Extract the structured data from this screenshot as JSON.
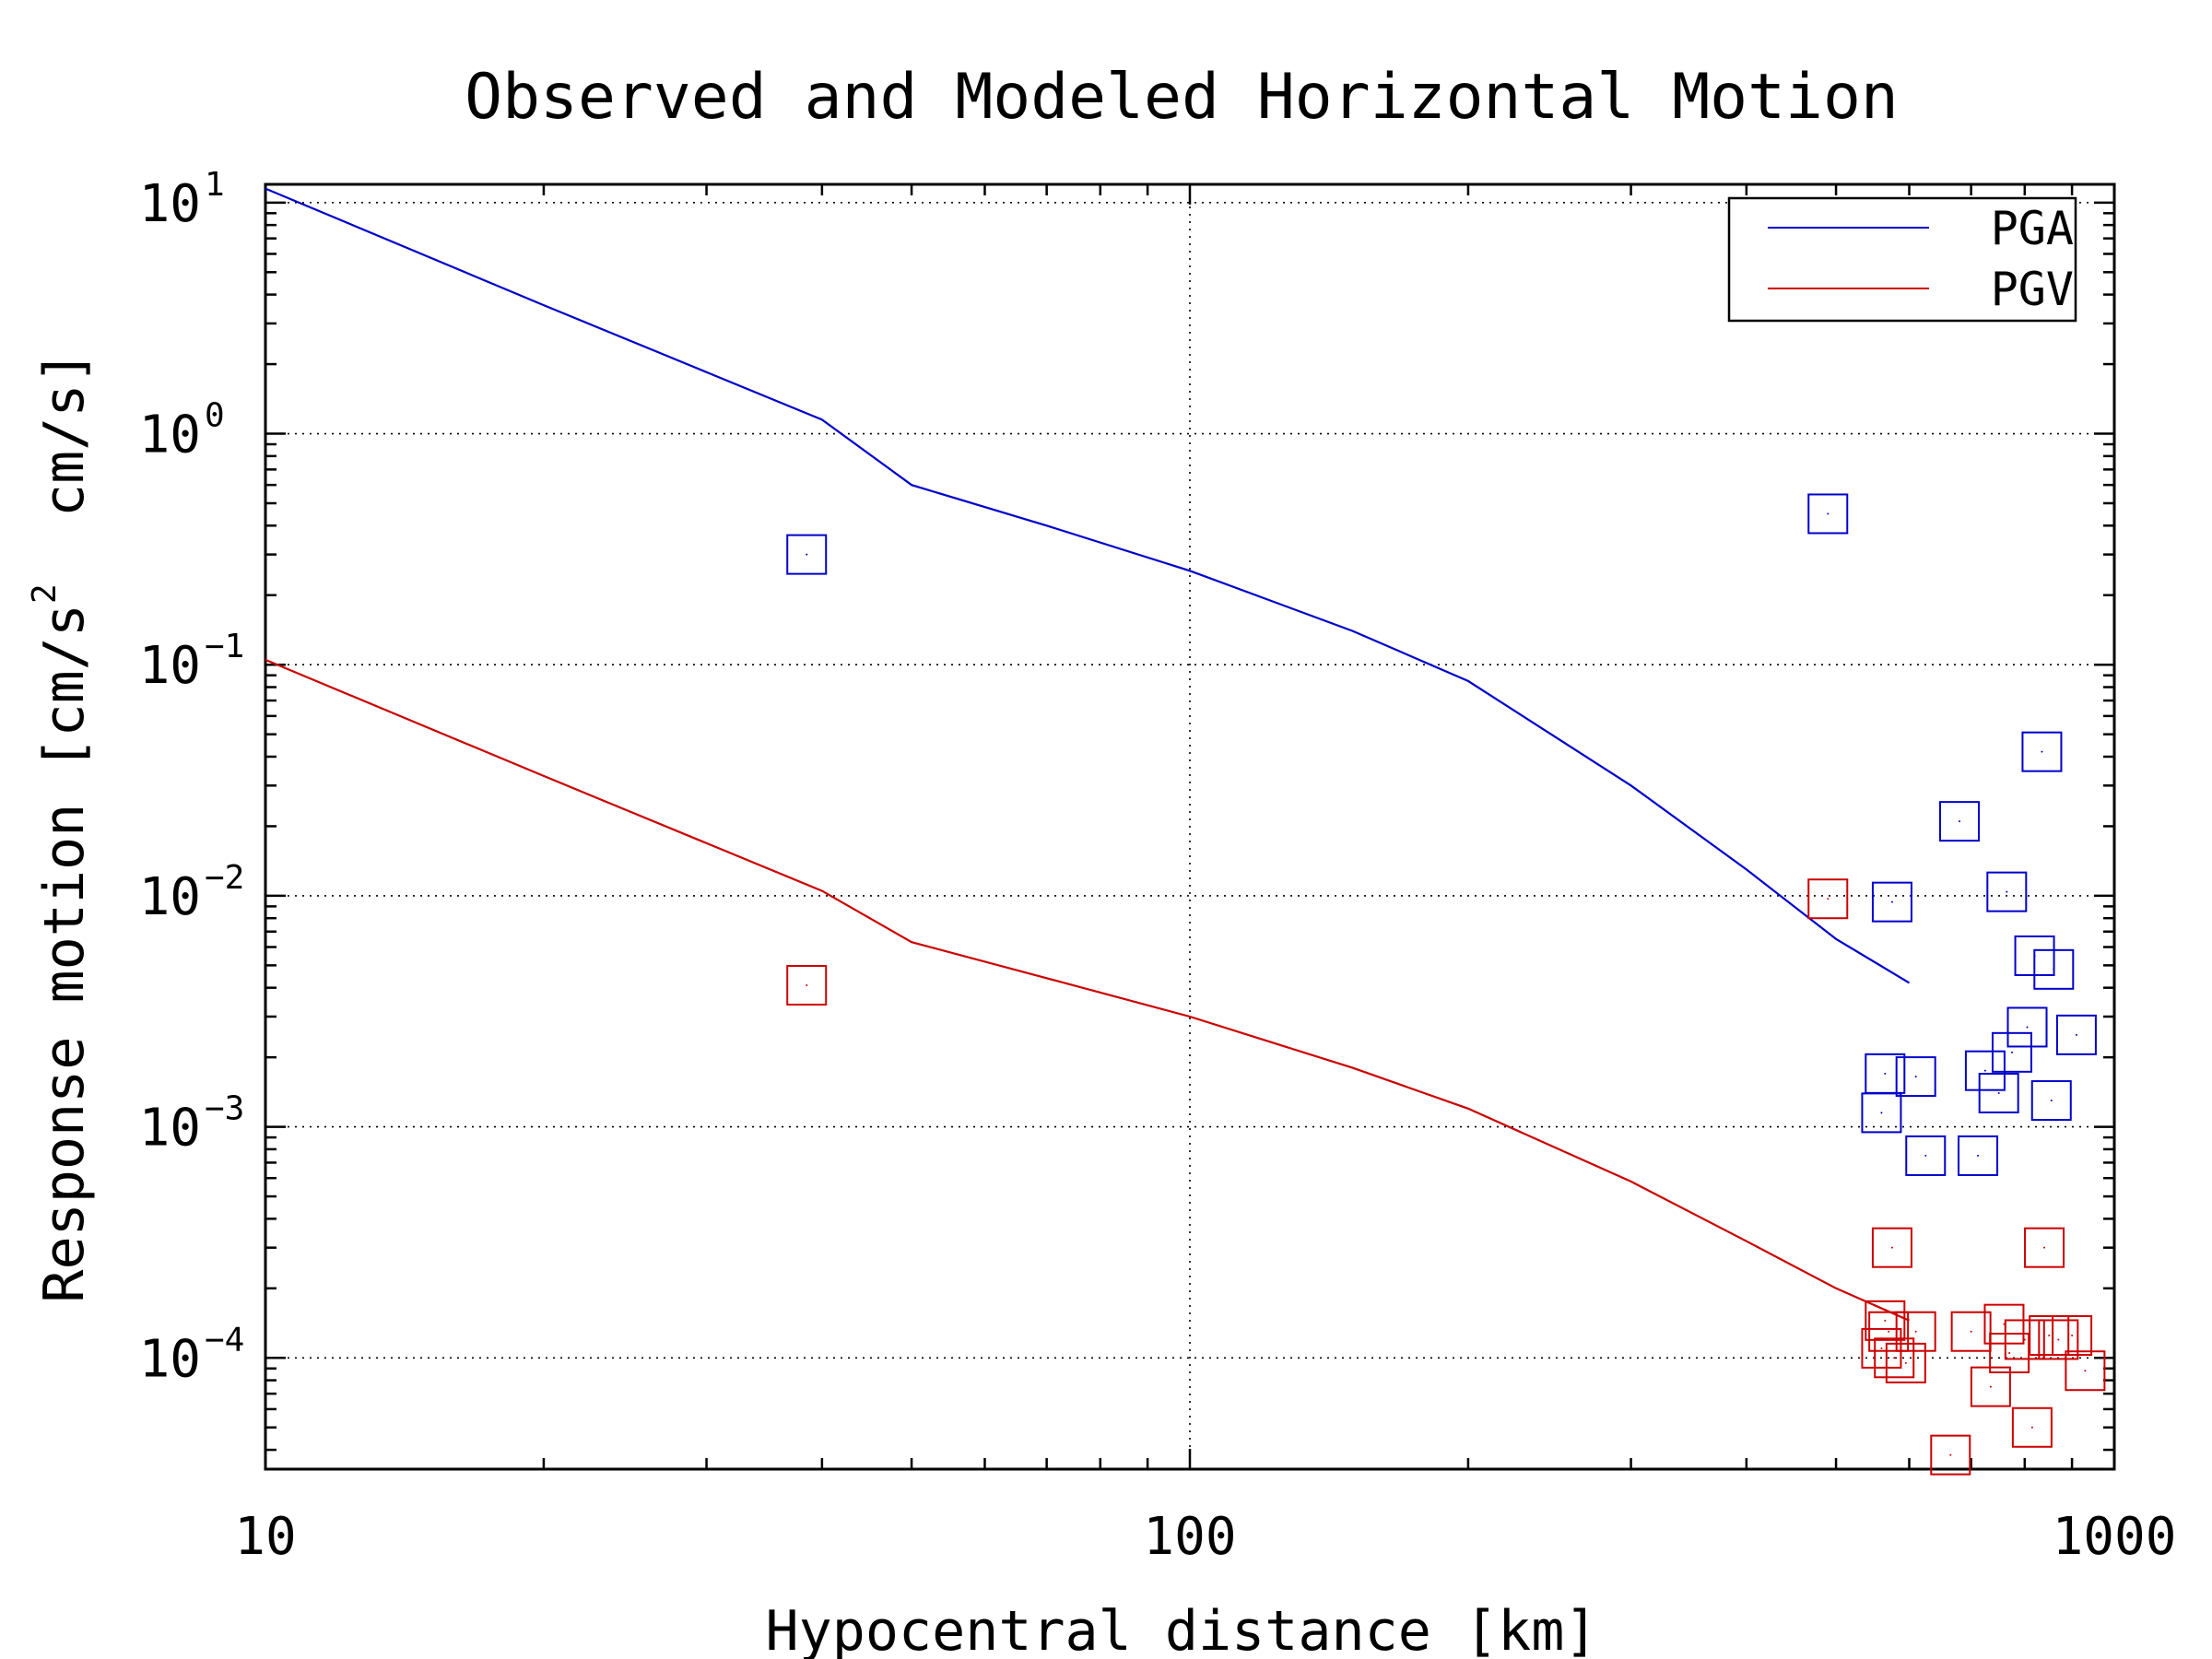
{
  "chart_data": {
    "type": "line",
    "title": "Observed and Modeled Horizontal Motion",
    "xlabel": "Hypocentral distance [km]",
    "ylabel": {
      "prefix": "Response motion [cm/s",
      "sup": "2",
      "suffix": "  cm/s]"
    },
    "xscale": "log",
    "yscale": "log",
    "xlim": [
      10,
      1000
    ],
    "ylim": [
      3.3e-05,
      12
    ],
    "x_ticks": [
      {
        "value": 10,
        "label": "10"
      },
      {
        "value": 100,
        "label": "100"
      },
      {
        "value": 1000,
        "label": "1000"
      }
    ],
    "y_ticks": [
      {
        "value": 10,
        "base": "10",
        "exp": "1"
      },
      {
        "value": 1,
        "base": "10",
        "exp": "0"
      },
      {
        "value": 0.1,
        "base": "10",
        "exp": "−1"
      },
      {
        "value": 0.01,
        "base": "10",
        "exp": "−2"
      },
      {
        "value": 0.001,
        "base": "10",
        "exp": "−3"
      },
      {
        "value": 0.0001,
        "base": "10",
        "exp": "−4"
      }
    ],
    "grid": true,
    "legend_position": "top-right",
    "series": [
      {
        "name": "PGA",
        "color": "#0000cc",
        "model_x": [
          10,
          20,
          40,
          50,
          70,
          100,
          150,
          200,
          300,
          400,
          500,
          600
        ],
        "model_y": [
          11.5,
          3.6,
          1.15,
          0.6,
          0.4,
          0.255,
          0.14,
          0.085,
          0.03,
          0.013,
          0.0065,
          0.0042
        ],
        "observed_x": [
          38.5,
          490,
          560,
          565,
          575,
          610,
          625,
          680,
          712,
          725,
          750,
          765,
          775,
          805,
          820,
          835,
          855,
          860,
          910
        ],
        "observed_y": [
          0.3,
          0.45,
          0.00115,
          0.0017,
          0.0094,
          0.00165,
          0.00075,
          0.021,
          0.00075,
          0.00175,
          0.0014,
          0.0104,
          0.0021,
          0.0027,
          0.0055,
          0.042,
          0.0013,
          0.0048,
          0.0025
        ]
      },
      {
        "name": "PGV",
        "color": "#cc0000",
        "model_x": [
          10,
          20,
          40,
          50,
          70,
          100,
          150,
          200,
          300,
          400,
          500,
          600
        ],
        "model_y": [
          0.105,
          0.033,
          0.0105,
          0.0063,
          0.0044,
          0.003,
          0.0018,
          0.0012,
          0.00058,
          0.00032,
          0.0002,
          0.000145
        ],
        "observed_x": [
          38.5,
          490,
          560,
          565,
          570,
          575,
          578,
          595,
          610,
          665,
          700,
          735,
          760,
          770,
          800,
          815,
          840,
          850,
          870,
          900,
          930
        ],
        "observed_y": [
          0.0041,
          0.0097,
          0.00011,
          0.000145,
          0.00013,
          0.0003,
          0.0001,
          9.5e-05,
          0.00013,
          3.8e-05,
          0.00013,
          7.5e-05,
          0.00014,
          0.000105,
          0.00012,
          5e-05,
          0.0003,
          0.000125,
          0.00012,
          0.000125,
          8.8e-05
        ]
      }
    ]
  }
}
